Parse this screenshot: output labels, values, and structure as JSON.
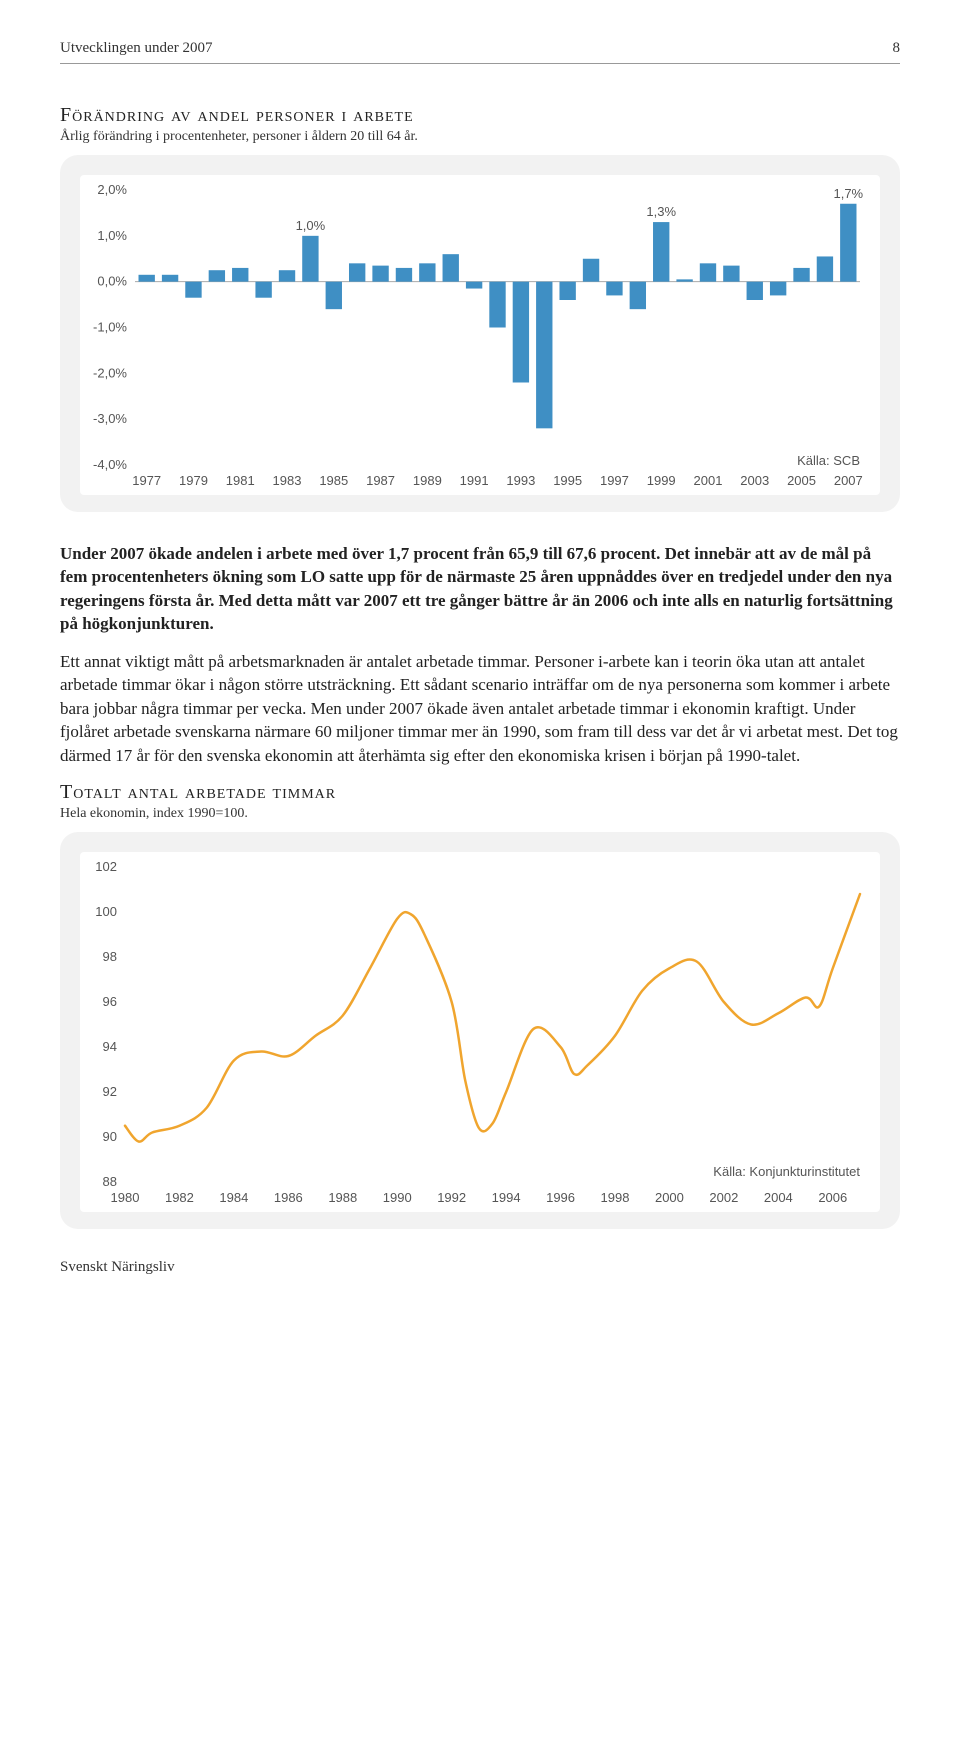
{
  "header": {
    "left": "Utvecklingen under 2007",
    "page_number": "8"
  },
  "chart1": {
    "type": "bar",
    "title": "Förändring av andel personer i arbete",
    "subtitle": "Årlig förändring i procentenheter, personer i åldern 20 till 64 år.",
    "source": "Källa: SCB",
    "bar_color": "#3f8fc4",
    "background_color": "#f2f2f2",
    "inner_background": "#ffffff",
    "text_color": "#555555",
    "ylim": [
      -4.0,
      2.0
    ],
    "y_ticks": [
      "2,0%",
      "1,0%",
      "0,0%",
      "-1,0%",
      "-2,0%",
      "-3,0%",
      "-4,0%"
    ],
    "x_labels": [
      "1977",
      "1979",
      "1981",
      "1983",
      "1985",
      "1987",
      "1989",
      "1991",
      "1993",
      "1995",
      "1997",
      "1999",
      "2001",
      "2003",
      "2005",
      "2007"
    ],
    "callouts": [
      {
        "label": "1,0%",
        "index": 7
      },
      {
        "label": "1,3%",
        "index": 22
      },
      {
        "label": "1,7%",
        "index": 30
      }
    ],
    "values": [
      0.15,
      0.15,
      -0.35,
      0.25,
      0.3,
      -0.35,
      0.25,
      1.0,
      -0.6,
      0.4,
      0.35,
      0.3,
      0.4,
      0.6,
      -0.15,
      -1.0,
      -2.2,
      -3.2,
      -0.4,
      0.5,
      -0.3,
      -0.6,
      1.3,
      0.05,
      0.4,
      0.35,
      -0.4,
      -0.3,
      0.3,
      0.55,
      1.7
    ],
    "title_fontsize": 20,
    "label_fontsize": 13,
    "bar_width": 0.7
  },
  "paragraphs": {
    "lead": "Under 2007 ökade andelen i arbete med över 1,7 procent från 65,9 till 67,6 procent. Det innebär att av de mål på fem procentenheters ökning som LO satte upp för de närmaste 25 åren uppnåddes över en tredjedel under den nya regeringens första år. Med detta mått var 2007 ett tre gånger bättre år än 2006 och inte alls en naturlig fortsättning på högkonjunkturen.",
    "p2": "Ett annat viktigt mått på arbetsmarknaden är antalet arbetade timmar. Personer i-arbete kan i teorin öka utan att antalet arbetade timmar ökar i någon större utsträckning. Ett sådant scenario inträffar om de nya personerna som kommer i arbete bara jobbar några timmar per vecka. Men under 2007 ökade även antalet arbetade timmar i ekonomin kraftigt. Under fjolåret arbetade svenskarna närmare 60 miljoner timmar mer än 1990, som fram till dess var det år vi arbetat mest. Det tog därmed 17 år för den svenska ekonomin att återhämta sig efter den ekonomiska krisen i början på 1990-talet."
  },
  "chart2": {
    "type": "line",
    "title": "Totalt antal arbetade timmar",
    "subtitle": "Hela ekonomin, index 1990=100.",
    "source": "Källa: Konjunkturinstitutet",
    "line_color": "#f0a52e",
    "line_width": 2.5,
    "background_color": "#f2f2f2",
    "inner_background": "#ffffff",
    "text_color": "#555555",
    "ylim": [
      88,
      102
    ],
    "y_ticks": [
      "102",
      "100",
      "98",
      "96",
      "94",
      "92",
      "90",
      "88"
    ],
    "x_labels": [
      "1980",
      "1982",
      "1984",
      "1986",
      "1988",
      "1990",
      "1992",
      "1994",
      "1996",
      "1998",
      "2000",
      "2002",
      "2004",
      "2006"
    ],
    "points": [
      [
        1980,
        90.5
      ],
      [
        1980.5,
        89.8
      ],
      [
        1981,
        90.2
      ],
      [
        1982,
        90.5
      ],
      [
        1983,
        91.3
      ],
      [
        1984,
        93.4
      ],
      [
        1985,
        93.8
      ],
      [
        1986,
        93.6
      ],
      [
        1987,
        94.5
      ],
      [
        1988,
        95.4
      ],
      [
        1989,
        97.5
      ],
      [
        1990,
        99.7
      ],
      [
        1990.5,
        99.9
      ],
      [
        1991,
        99.0
      ],
      [
        1992,
        96.0
      ],
      [
        1992.5,
        92.5
      ],
      [
        1993,
        90.4
      ],
      [
        1993.5,
        90.6
      ],
      [
        1994,
        92.0
      ],
      [
        1995,
        94.8
      ],
      [
        1996,
        94.0
      ],
      [
        1996.5,
        92.8
      ],
      [
        1997,
        93.2
      ],
      [
        1998,
        94.5
      ],
      [
        1999,
        96.5
      ],
      [
        2000,
        97.5
      ],
      [
        2001,
        97.8
      ],
      [
        2002,
        96.0
      ],
      [
        2003,
        95.0
      ],
      [
        2004,
        95.5
      ],
      [
        2005,
        96.2
      ],
      [
        2005.5,
        95.8
      ],
      [
        2006,
        97.5
      ],
      [
        2007,
        100.8
      ]
    ],
    "title_fontsize": 20,
    "label_fontsize": 13
  },
  "footer": {
    "text": "Svenskt Näringsliv"
  }
}
